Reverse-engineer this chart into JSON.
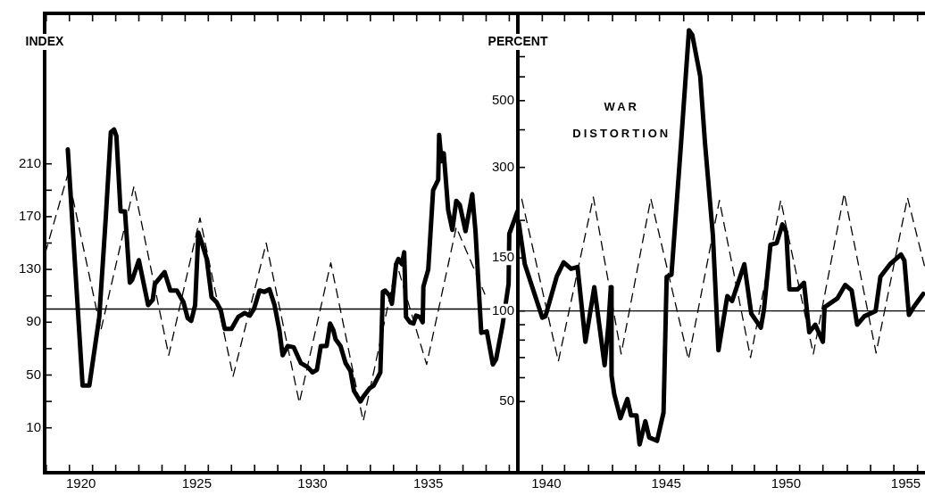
{
  "chart_data": [
    {
      "type": "line",
      "ylabel": "INDEX",
      "grid": false,
      "marker": "none",
      "xlim": [
        1918.43,
        1938.87
      ],
      "ylim": [
        -24,
        324
      ],
      "xticks": [
        {
          "value": 1918.5,
          "label": null
        },
        {
          "value": 1919.5,
          "label": null
        },
        1920,
        {
          "value": 1920.5,
          "label": null
        },
        {
          "value": 1921.5,
          "label": null
        },
        {
          "value": 1922.5,
          "label": null
        },
        {
          "value": 1923.5,
          "label": null
        },
        {
          "value": 1924.5,
          "label": null
        },
        1925,
        {
          "value": 1925.5,
          "label": null
        },
        {
          "value": 1926.5,
          "label": null
        },
        {
          "value": 1927.5,
          "label": null
        },
        {
          "value": 1928.5,
          "label": null
        },
        {
          "value": 1929.5,
          "label": null
        },
        1930,
        {
          "value": 1930.5,
          "label": null
        },
        {
          "value": 1931.5,
          "label": null
        },
        {
          "value": 1932.5,
          "label": null
        },
        {
          "value": 1933.5,
          "label": null
        },
        {
          "value": 1934.5,
          "label": null
        },
        1935,
        {
          "value": 1935.5,
          "label": null
        },
        {
          "value": 1936.5,
          "label": null
        },
        {
          "value": 1937.5,
          "label": null
        },
        {
          "value": 1938.5,
          "label": null
        }
      ],
      "yticks": [
        10,
        {
          "value": 30,
          "label": null
        },
        50,
        {
          "value": 70,
          "label": null
        },
        90,
        {
          "value": 110,
          "label": null
        },
        130,
        {
          "value": 150,
          "label": null
        },
        170,
        {
          "value": 190,
          "label": null
        },
        210
      ],
      "ref_lines": [
        {
          "axis": "y",
          "value": 100
        }
      ],
      "series": [
        {
          "color": "#000000",
          "line_style": "solid",
          "x": [
            1919.43,
            1920.07,
            1920.36,
            1920.79,
            1921.07,
            1921.29,
            1921.43,
            1921.53,
            1921.71,
            1921.9,
            1922.11,
            1922.21,
            1922.5,
            1922.9,
            1923.1,
            1923.19,
            1923.61,
            1923.86,
            1924.14,
            1924.43,
            1924.61,
            1924.76,
            1924.93,
            1925.07,
            1925.24,
            1925.43,
            1925.64,
            1925.86,
            1926.04,
            1926.21,
            1926.5,
            1926.79,
            1927.07,
            1927.29,
            1927.47,
            1927.71,
            1927.93,
            1928.14,
            1928.36,
            1928.57,
            1928.71,
            1928.93,
            1929.19,
            1929.5,
            1929.79,
            1930,
            1930.19,
            1930.36,
            1930.61,
            1930.76,
            1930.9,
            1931,
            1931.21,
            1931.43,
            1931.64,
            1931.79,
            1932.07,
            1932.21,
            1932.47,
            1932.64,
            1932.93,
            1933.04,
            1933.14,
            1933.33,
            1933.43,
            1933.61,
            1933.71,
            1933.86,
            1933.96,
            1934.04,
            1934.21,
            1934.36,
            1934.47,
            1934.64,
            1934.76,
            1934.79,
            1935,
            1935.21,
            1935.43,
            1935.47,
            1935.57,
            1935.67,
            1935.86,
            1936.04,
            1936.21,
            1936.36,
            1936.61,
            1936.9,
            1937.04,
            1937.29,
            1937.53,
            1937.79,
            1937.93,
            1938.21,
            1938.47,
            1938.5,
            1938.71,
            1938.85
          ],
          "values": [
            221,
            42,
            42,
            94,
            169,
            234,
            236,
            231,
            174,
            174,
            120,
            122,
            137,
            103,
            107,
            119,
            128,
            114,
            114,
            105,
            93,
            91,
            103,
            158,
            149,
            138,
            109,
            105,
            99,
            85,
            85,
            94,
            97,
            95,
            100,
            114,
            113,
            115,
            103,
            84,
            65,
            72,
            71,
            59,
            56,
            52,
            54,
            72,
            72,
            89,
            84,
            77,
            72,
            59,
            53,
            38,
            30,
            34,
            40,
            42,
            52,
            113,
            114,
            110,
            104,
            134,
            138,
            134,
            143,
            94,
            90,
            89,
            95,
            94,
            90,
            117,
            130,
            190,
            198,
            232,
            212,
            218,
            175,
            160,
            182,
            179,
            159,
            187,
            159,
            82,
            83,
            58,
            62,
            88,
            119,
            157,
            167,
            174
          ]
        },
        {
          "color": "#000000",
          "line_style": "dashed",
          "x": [
            1918.45,
            1919.43,
            1920.86,
            1922.29,
            1923.79,
            1925.14,
            1926.57,
            1928,
            1929.43,
            1930.79,
            1932.19,
            1933.64,
            1934.93,
            1936.21,
            1937.45
          ],
          "values": [
            142,
            202,
            84,
            193,
            65,
            169,
            49,
            150,
            29,
            135,
            15,
            134,
            58,
            162,
            111
          ]
        }
      ]
    },
    {
      "type": "line",
      "ylabel": "PERCENT",
      "grid": false,
      "marker": "none",
      "log": true,
      "xlim": [
        1938.81,
        1955.8
      ],
      "ylim": [
        29,
        975
      ],
      "xticks": [
        {
          "value": 1939.83,
          "label": null
        },
        1940,
        {
          "value": 1940.76,
          "label": null
        },
        {
          "value": 1941.76,
          "label": null
        },
        {
          "value": 1942.76,
          "label": null
        },
        {
          "value": 1943.73,
          "label": null
        },
        {
          "value": 1944.72,
          "label": null
        },
        1945,
        {
          "value": 1945.73,
          "label": null
        },
        {
          "value": 1946.75,
          "label": null
        },
        {
          "value": 1947.75,
          "label": null
        },
        {
          "value": 1948.68,
          "label": null
        },
        {
          "value": 1949.61,
          "label": null
        },
        1950,
        {
          "value": 1950.57,
          "label": null
        },
        {
          "value": 1951.54,
          "label": null
        },
        {
          "value": 1952.56,
          "label": null
        },
        {
          "value": 1953.53,
          "label": null
        },
        {
          "value": 1954.5,
          "label": null
        },
        1955,
        {
          "value": 1955.49,
          "label": null
        }
      ],
      "yticks": [
        50,
        {
          "value": 60,
          "label": null
        },
        {
          "value": 70,
          "label": null
        },
        {
          "value": 80,
          "label": null
        },
        {
          "value": 90,
          "label": null
        },
        100,
        150,
        {
          "value": 200,
          "label": null
        },
        300,
        {
          "value": 400,
          "label": null
        },
        500,
        {
          "value": 600,
          "label": null
        },
        {
          "value": 700,
          "label": null
        },
        {
          "value": 800,
          "label": null
        }
      ],
      "ref_lines": [
        {
          "axis": "y",
          "value": 100
        }
      ],
      "annotations": [
        "WAR DISTORTION"
      ],
      "series": [
        {
          "color": "#000000",
          "line_style": "solid",
          "x": [
            1938.85,
            1939.1,
            1939.83,
            1939.96,
            1940.43,
            1940.72,
            1941.03,
            1941.3,
            1941.63,
            1942,
            1942.43,
            1942.59,
            1942.69,
            1942.72,
            1942.83,
            1943.09,
            1943.38,
            1943.53,
            1943.76,
            1943.89,
            1944.13,
            1944.29,
            1944.62,
            1944.89,
            1945.02,
            1945.22,
            1945.62,
            1945.95,
            1946.09,
            1946.42,
            1946.62,
            1946.95,
            1947.18,
            1947.55,
            1947.75,
            1948.26,
            1948.55,
            1948.95,
            1949.08,
            1949.35,
            1949.61,
            1949.85,
            1950.01,
            1950.14,
            1950.48,
            1950.75,
            1950.97,
            1951.22,
            1951.54,
            1951.61,
            1952.14,
            1952.47,
            1952.74,
            1952.97,
            1953.27,
            1953.74,
            1953.94,
            1954.34,
            1954.8,
            1954.94,
            1955.13,
            1955.33,
            1955.73
          ],
          "values": [
            196,
            143,
            95,
            96,
            130,
            145,
            138,
            140,
            79,
            120,
            66,
            90,
            120,
            61,
            53,
            44,
            51,
            45,
            45,
            36,
            43,
            38,
            37,
            46,
            130,
            132,
            361,
            857,
            826,
            602,
            361,
            178,
            74,
            112,
            108,
            143,
            98,
            88,
            101,
            166,
            168,
            194,
            183,
            118,
            118,
            124,
            85,
            90,
            79,
            103,
            110,
            122,
            117,
            90,
            96,
            100,
            130,
            143,
            154,
            147,
            97,
            103,
            114
          ]
        },
        {
          "color": "#000000",
          "line_style": "dashed",
          "x": [
            1938.97,
            1940.5,
            1941.96,
            1943.12,
            1944.36,
            1945.93,
            1947.22,
            1948.52,
            1949.78,
            1951.14,
            1952.43,
            1953.76,
            1955.07,
            1955.78
          ],
          "values": [
            236,
            68,
            239,
            72,
            236,
            69,
            233,
            70,
            233,
            72,
            246,
            72.5,
            238,
            141
          ]
        }
      ]
    }
  ]
}
